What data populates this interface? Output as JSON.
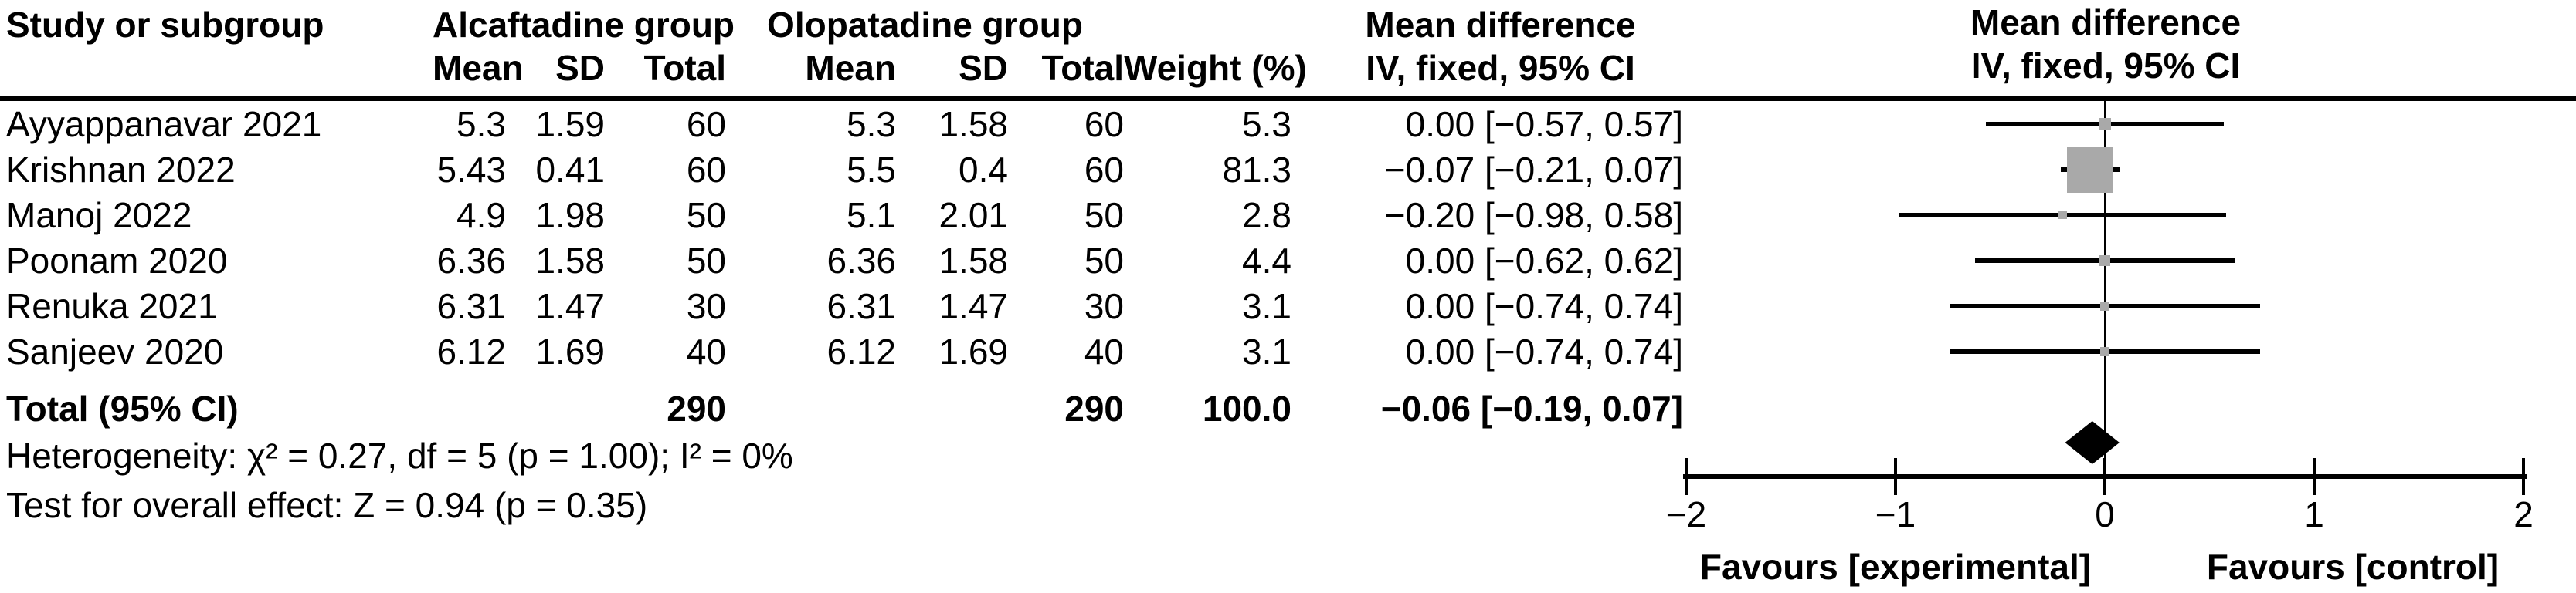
{
  "header": {
    "study_col": "Study or subgroup",
    "group1": "Alcaftadine group",
    "group2": "Olopatadine group",
    "mean": "Mean",
    "sd": "SD",
    "total": "Total",
    "weight": "Weight (%)",
    "md_line1": "Mean difference",
    "md_line2": "IV, fixed, 95% CI",
    "plot_line1": "Mean difference",
    "plot_line2": "IV, fixed, 95% CI"
  },
  "studies": [
    {
      "name": "Ayyappanavar 2021",
      "a_mean": "5.3",
      "a_sd": "1.59",
      "a_total": "60",
      "o_mean": "5.3",
      "o_sd": "1.58",
      "o_total": "60",
      "weight": "5.3",
      "md_ci": "0.00 [−0.57, 0.57]"
    },
    {
      "name": "Krishnan 2022",
      "a_mean": "5.43",
      "a_sd": "0.41",
      "a_total": "60",
      "o_mean": "5.5",
      "o_sd": "0.4",
      "o_total": "60",
      "weight": "81.3",
      "md_ci": "−0.07 [−0.21, 0.07]"
    },
    {
      "name": "Manoj 2022",
      "a_mean": "4.9",
      "a_sd": "1.98",
      "a_total": "50",
      "o_mean": "5.1",
      "o_sd": "2.01",
      "o_total": "50",
      "weight": "2.8",
      "md_ci": "−0.20 [−0.98, 0.58]"
    },
    {
      "name": "Poonam 2020",
      "a_mean": "6.36",
      "a_sd": "1.58",
      "a_total": "50",
      "o_mean": "6.36",
      "o_sd": "1.58",
      "o_total": "50",
      "weight": "4.4",
      "md_ci": "0.00 [−0.62, 0.62]"
    },
    {
      "name": "Renuka 2021",
      "a_mean": "6.31",
      "a_sd": "1.47",
      "a_total": "30",
      "o_mean": "6.31",
      "o_sd": "1.47",
      "o_total": "30",
      "weight": "3.1",
      "md_ci": "0.00 [−0.74, 0.74]"
    },
    {
      "name": "Sanjeev 2020",
      "a_mean": "6.12",
      "a_sd": "1.69",
      "a_total": "40",
      "o_mean": "6.12",
      "o_sd": "1.69",
      "o_total": "40",
      "weight": "3.1",
      "md_ci": "0.00 [−0.74, 0.74]"
    }
  ],
  "total": {
    "label": "Total (95% CI)",
    "a_total": "290",
    "o_total": "290",
    "weight": "100.0",
    "md_ci": "−0.06 [−0.19, 0.07]"
  },
  "footer": {
    "heterogeneity": "Heterogeneity: χ² = 0.27, df = 5 (p = 1.00); I² = 0%",
    "overall_effect": "Test for overall effect: Z = 0.94 (p = 0.35)"
  },
  "axis": {
    "favours_left": "Favours [experimental]",
    "favours_right": "Favours [control]"
  },
  "colors": {
    "square_gray": "#a9a9a9",
    "line_black": "#000000"
  },
  "chart_data": {
    "type": "forest",
    "effect_measure": "Mean difference",
    "model": "IV, fixed, 95% CI",
    "xlim": [
      -2,
      2
    ],
    "x_ticks": [
      {
        "value": -2,
        "label": "−2"
      },
      {
        "value": -1,
        "label": "−1"
      },
      {
        "value": 0,
        "label": "0"
      },
      {
        "value": 1,
        "label": "1"
      },
      {
        "value": 2,
        "label": "2"
      }
    ],
    "zero_line": 0,
    "studies": [
      {
        "name": "Ayyappanavar 2021",
        "md": 0.0,
        "ci": [
          -0.57,
          0.57
        ],
        "weight_pct": 5.3
      },
      {
        "name": "Krishnan 2022",
        "md": -0.07,
        "ci": [
          -0.21,
          0.07
        ],
        "weight_pct": 81.3
      },
      {
        "name": "Manoj 2022",
        "md": -0.2,
        "ci": [
          -0.98,
          0.58
        ],
        "weight_pct": 2.8
      },
      {
        "name": "Poonam 2020",
        "md": 0.0,
        "ci": [
          -0.62,
          0.62
        ],
        "weight_pct": 4.4
      },
      {
        "name": "Renuka 2021",
        "md": 0.0,
        "ci": [
          -0.74,
          0.74
        ],
        "weight_pct": 3.1
      },
      {
        "name": "Sanjeev 2020",
        "md": 0.0,
        "ci": [
          -0.74,
          0.74
        ],
        "weight_pct": 3.1
      }
    ],
    "total": {
      "label": "Total (95% CI)",
      "md": -0.06,
      "ci": [
        -0.19,
        0.07
      ],
      "weight_pct": 100.0
    },
    "heterogeneity": {
      "chi2": 0.27,
      "df": 5,
      "p": 1.0,
      "I2_pct": 0
    },
    "overall_effect": {
      "Z": 0.94,
      "p": 0.35
    },
    "favours_left": "Favours [experimental]",
    "favours_right": "Favours [control]"
  }
}
